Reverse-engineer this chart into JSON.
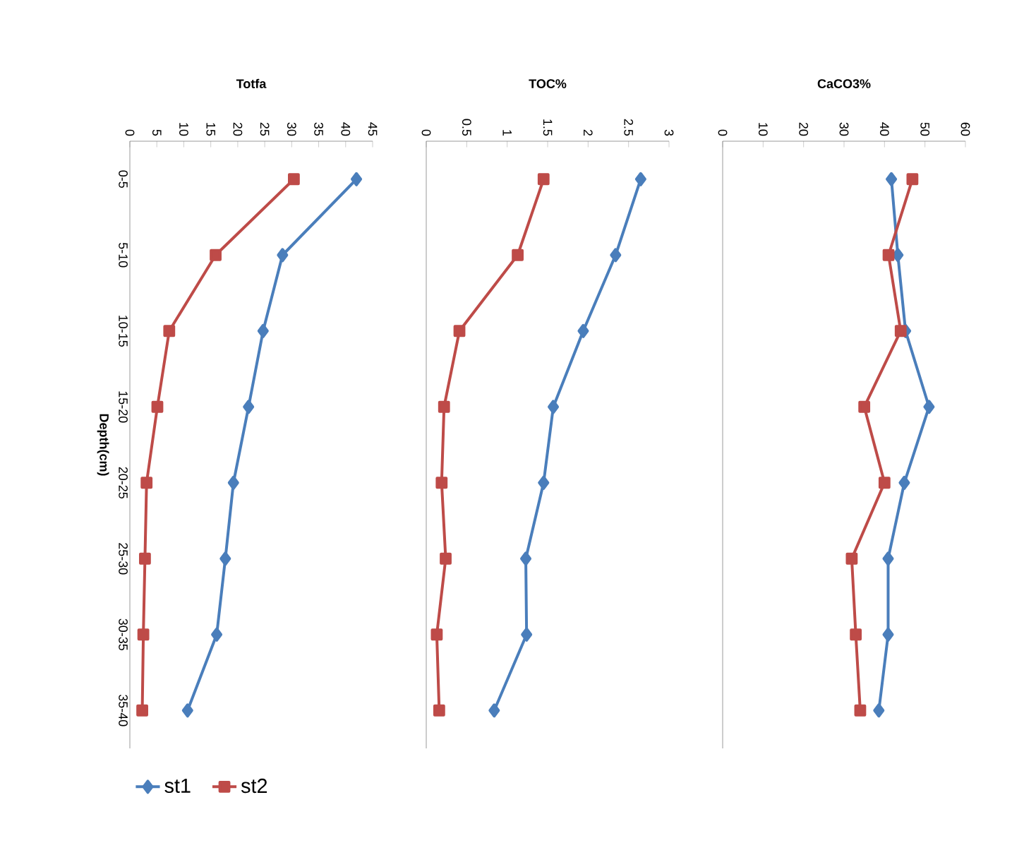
{
  "chart_data": [
    {
      "type": "line",
      "orientation": "horizontal",
      "title": "Totfa",
      "ylabel": "Depth(cm)",
      "categories": [
        "0-5",
        "5-10",
        "10-15",
        "15-20",
        "20-25",
        "25-30",
        "30-35",
        "35-40"
      ],
      "xlim": [
        0,
        45
      ],
      "xticks": [
        0,
        5,
        10,
        15,
        20,
        25,
        30,
        35,
        40,
        45
      ],
      "legend": "bottom",
      "series": [
        {
          "name": "st1",
          "color": "#4a7ebb",
          "marker": "diamond",
          "values": [
            42.0,
            28.3,
            24.7,
            22.0,
            19.2,
            17.7,
            16.1,
            10.7
          ]
        },
        {
          "name": "st2",
          "color": "#be4b48",
          "marker": "square",
          "values": [
            30.4,
            15.9,
            7.3,
            5.1,
            3.1,
            2.8,
            2.5,
            2.3
          ]
        }
      ]
    },
    {
      "type": "line",
      "orientation": "horizontal",
      "title": "TOC%",
      "categories": [
        null,
        null,
        null,
        null,
        null,
        null,
        null,
        null
      ],
      "xlim": [
        0,
        3
      ],
      "xticks": [
        0,
        0.5,
        1,
        1.5,
        2,
        2.5,
        3
      ],
      "tick_labels": "x",
      "series": [
        {
          "color": "#4a7ebb",
          "marker": "diamond",
          "values": [
            2.65,
            2.34,
            1.94,
            1.57,
            1.45,
            1.23,
            1.24,
            0.84
          ]
        },
        {
          "color": "#be4b48",
          "marker": "square",
          "values": [
            1.45,
            1.13,
            0.41,
            0.22,
            0.19,
            0.24,
            0.13,
            0.16
          ]
        }
      ]
    },
    {
      "type": "line",
      "orientation": "horizontal",
      "title": "CaCO3%",
      "categories": [
        null,
        null,
        null,
        null,
        null,
        null,
        null,
        null
      ],
      "xlim": [
        0,
        60
      ],
      "xticks": [
        0,
        10,
        20,
        30,
        40,
        50,
        60
      ],
      "tick_labels": "x",
      "series": [
        {
          "color": "#4a7ebb",
          "marker": "diamond",
          "values": [
            41.7,
            43.3,
            45.2,
            51.0,
            44.9,
            40.9,
            40.9,
            38.6
          ]
        },
        {
          "color": "#be4b48",
          "marker": "square",
          "values": [
            46.9,
            41.0,
            44.0,
            35.0,
            40.0,
            31.9,
            32.9,
            34.0
          ]
        }
      ]
    }
  ]
}
